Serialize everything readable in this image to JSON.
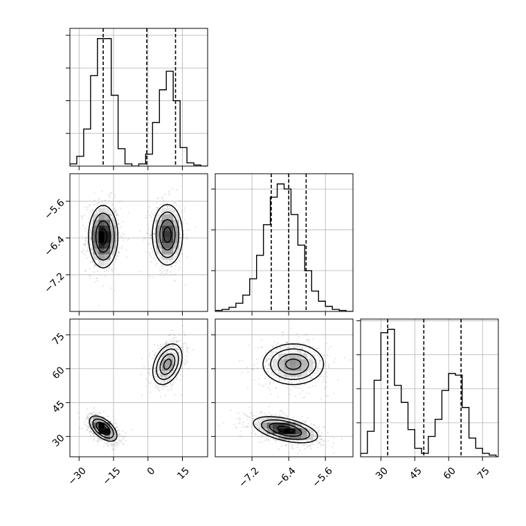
{
  "chart_data": {
    "type": "corner",
    "parameters": [
      {
        "range": [
          -34,
          26
        ],
        "ticks": [
          -30,
          -15,
          0,
          15
        ],
        "tick_labels": [
          "−30",
          "−15",
          "0",
          "15"
        ]
      },
      {
        "range": [
          -8.0,
          -5.0
        ],
        "ticks": [
          -7.2,
          -6.4,
          -5.6
        ],
        "tick_labels": [
          "−7.2",
          "−6.4",
          "−5.6"
        ]
      },
      {
        "range": [
          21,
          82
        ],
        "ticks": [
          30,
          45,
          60,
          75
        ],
        "tick_labels": [
          "30",
          "45",
          "60",
          "75"
        ]
      }
    ],
    "histograms": [
      {
        "bin_edges": [
          -34,
          -31,
          -28,
          -25,
          -22,
          -19,
          -16,
          -13,
          -10,
          -7,
          -4,
          -1,
          2,
          5,
          8,
          11,
          14,
          17,
          20,
          23,
          26
        ],
        "counts": [
          2,
          9,
          34,
          83,
          117,
          117,
          65,
          16,
          2,
          0,
          2,
          11,
          40,
          70,
          87,
          60,
          17,
          3,
          1,
          0
        ],
        "quantiles": [
          -19.5,
          -0.5,
          12.0
        ]
      },
      {
        "bin_edges": [
          -8.0,
          -7.85,
          -7.7,
          -7.55,
          -7.4,
          -7.25,
          -7.1,
          -6.95,
          -6.8,
          -6.65,
          -6.5,
          -6.35,
          -6.2,
          -6.05,
          -5.9,
          -5.75,
          -5.6,
          -5.45,
          -5.3,
          -5.15,
          -5.0
        ],
        "counts": [
          1,
          2,
          4,
          8,
          16,
          32,
          55,
          85,
          112,
          125,
          120,
          95,
          65,
          40,
          20,
          10,
          5,
          2,
          1,
          0
        ],
        "quantiles": [
          -6.78,
          -6.4,
          -6.02
        ]
      },
      {
        "bin_edges": [
          21,
          24,
          27,
          30,
          33,
          36,
          39,
          42,
          45,
          48,
          51,
          54,
          57,
          60,
          63,
          66,
          69,
          72,
          75,
          78,
          81,
          82
        ],
        "counts": [
          2,
          15,
          45,
          73,
          75,
          42,
          32,
          16,
          5,
          2,
          12,
          22,
          39,
          49,
          48,
          29,
          11,
          5,
          2,
          1,
          0
        ],
        "quantiles": [
          33.0,
          49.0,
          65.5
        ]
      }
    ],
    "joint_2d": [
      {
        "x_param": 0,
        "y_param": 1,
        "modes": [
          {
            "mean": [
              -19.5,
              -6.37
            ],
            "sd": [
              3.2,
              0.34
            ],
            "rho": 0.0,
            "weight": 0.55
          },
          {
            "mean": [
              8.5,
              -6.33
            ],
            "sd": [
              3.3,
              0.33
            ],
            "rho": 0.0,
            "weight": 0.45
          }
        ]
      },
      {
        "x_param": 0,
        "y_param": 2,
        "modes": [
          {
            "mean": [
              -19.5,
              33.5
            ],
            "sd": [
              3.0,
              2.8
            ],
            "rho": -0.55,
            "weight": 0.55
          },
          {
            "mean": [
              8.5,
              62.0
            ],
            "sd": [
              3.2,
              4.5
            ],
            "rho": 0.35,
            "weight": 0.45
          }
        ]
      },
      {
        "x_param": 1,
        "y_param": 2,
        "modes": [
          {
            "mean": [
              -6.47,
              33.0
            ],
            "sd": [
              0.35,
              2.9
            ],
            "rho": -0.5,
            "weight": 0.55
          },
          {
            "mean": [
              -6.3,
              62.0
            ],
            "sd": [
              0.33,
              4.5
            ],
            "rho": 0.0,
            "weight": 0.45
          }
        ]
      }
    ]
  }
}
